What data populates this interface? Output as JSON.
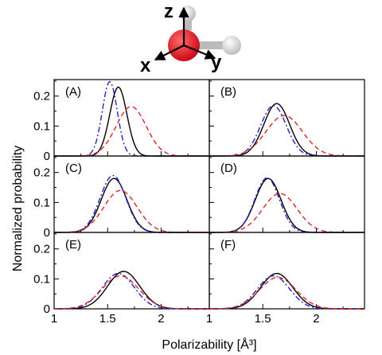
{
  "molecule": {
    "axis_labels": [
      "z",
      "x",
      "y"
    ],
    "oxygen_color": "#e0141e",
    "hydrogen_color": "#e8e8e8"
  },
  "chart_data": {
    "type": "line",
    "ylabel": "Normalized probability",
    "xlabel": "Polarizability [Å³]",
    "xlim": [
      1.0,
      2.45
    ],
    "ylim": [
      0,
      0.255
    ],
    "x_ticks": [
      1,
      1.5,
      2
    ],
    "x_tick_labels": [
      "1",
      "1.5",
      "2"
    ],
    "y_ticks": [
      0,
      0.1,
      0.2
    ],
    "y_tick_labels": [
      "0",
      "0.1",
      "0.2"
    ],
    "grid": false,
    "series_styles": [
      {
        "key": "black",
        "color": "#000000",
        "dash": "solid"
      },
      {
        "key": "blue",
        "color": "#2222cc",
        "dash": "dashdot"
      },
      {
        "key": "red",
        "color": "#e82020",
        "dash": "dashed"
      }
    ],
    "panels": [
      {
        "label": "(A)",
        "series": {
          "black": {
            "mu": 1.6,
            "sig": 0.08,
            "peak": 0.23
          },
          "blue": {
            "mu": 1.52,
            "sig": 0.07,
            "peak": 0.248
          },
          "red": {
            "mu": 1.72,
            "sig": 0.14,
            "peak": 0.165
          }
        }
      },
      {
        "label": "(B)",
        "series": {
          "black": {
            "mu": 1.63,
            "sig": 0.12,
            "peak": 0.175
          },
          "blue": {
            "mu": 1.6,
            "sig": 0.12,
            "peak": 0.168
          },
          "red": {
            "mu": 1.7,
            "sig": 0.17,
            "peak": 0.135
          }
        }
      },
      {
        "label": "(C)",
        "series": {
          "black": {
            "mu": 1.56,
            "sig": 0.12,
            "peak": 0.18
          },
          "blue": {
            "mu": 1.55,
            "sig": 0.12,
            "peak": 0.19
          },
          "red": {
            "mu": 1.62,
            "sig": 0.155,
            "peak": 0.14
          }
        }
      },
      {
        "label": "(D)",
        "series": {
          "black": {
            "mu": 1.55,
            "sig": 0.12,
            "peak": 0.18
          },
          "blue": {
            "mu": 1.54,
            "sig": 0.115,
            "peak": 0.182
          },
          "red": {
            "mu": 1.66,
            "sig": 0.16,
            "peak": 0.13
          }
        }
      },
      {
        "label": "(E)",
        "series": {
          "black": {
            "mu": 1.65,
            "sig": 0.15,
            "peak": 0.125
          },
          "blue": {
            "mu": 1.6,
            "sig": 0.15,
            "peak": 0.118
          },
          "red": {
            "mu": 1.62,
            "sig": 0.17,
            "peak": 0.11
          }
        }
      },
      {
        "label": "(F)",
        "series": {
          "black": {
            "mu": 1.63,
            "sig": 0.15,
            "peak": 0.118
          },
          "blue": {
            "mu": 1.6,
            "sig": 0.15,
            "peak": 0.11
          },
          "red": {
            "mu": 1.64,
            "sig": 0.17,
            "peak": 0.105
          }
        }
      }
    ]
  }
}
